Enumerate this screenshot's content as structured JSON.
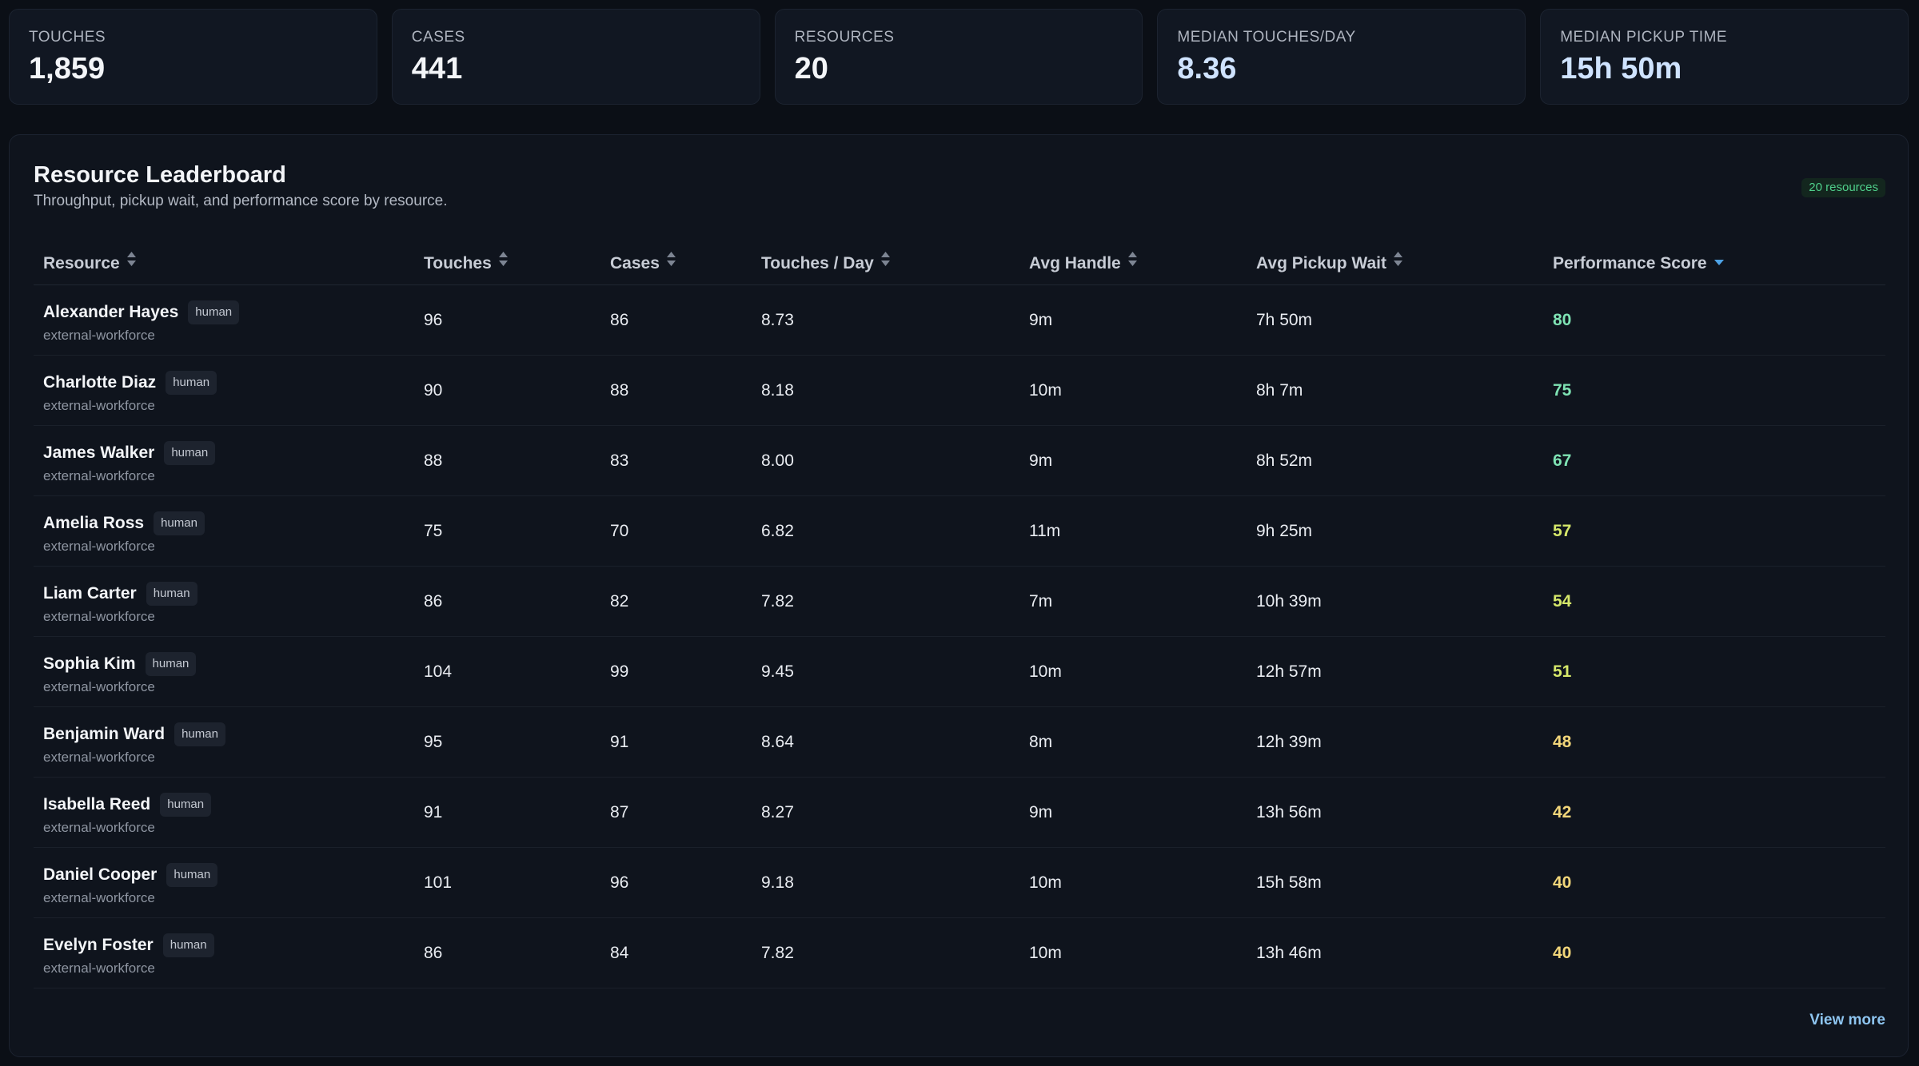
{
  "stats": [
    {
      "label": "TOUCHES",
      "value": "1,859"
    },
    {
      "label": "CASES",
      "value": "441"
    },
    {
      "label": "RESOURCES",
      "value": "20"
    },
    {
      "label": "MEDIAN TOUCHES/DAY",
      "value": "8.36"
    },
    {
      "label": "MEDIAN PICKUP TIME",
      "value": "15h 50m"
    }
  ],
  "leaderboard": {
    "title": "Resource Leaderboard",
    "subtitle": "Throughput, pickup wait, and performance score by resource.",
    "count_badge": "20 resources",
    "columns": [
      "Resource",
      "Touches",
      "Cases",
      "Touches / Day",
      "Avg Handle",
      "Avg Pickup Wait",
      "Performance Score"
    ],
    "sorted_column": "Performance Score",
    "sort_direction": "descending",
    "rows": [
      {
        "name": "Alexander Hayes",
        "tag": "human",
        "org": "external-workforce",
        "touches": "96",
        "cases": "86",
        "tpd": "8.73",
        "handle": "9m",
        "wait": "7h 50m",
        "score": "80"
      },
      {
        "name": "Charlotte Diaz",
        "tag": "human",
        "org": "external-workforce",
        "touches": "90",
        "cases": "88",
        "tpd": "8.18",
        "handle": "10m",
        "wait": "8h 7m",
        "score": "75"
      },
      {
        "name": "James Walker",
        "tag": "human",
        "org": "external-workforce",
        "touches": "88",
        "cases": "83",
        "tpd": "8.00",
        "handle": "9m",
        "wait": "8h 52m",
        "score": "67"
      },
      {
        "name": "Amelia Ross",
        "tag": "human",
        "org": "external-workforce",
        "touches": "75",
        "cases": "70",
        "tpd": "6.82",
        "handle": "11m",
        "wait": "9h 25m",
        "score": "57"
      },
      {
        "name": "Liam Carter",
        "tag": "human",
        "org": "external-workforce",
        "touches": "86",
        "cases": "82",
        "tpd": "7.82",
        "handle": "7m",
        "wait": "10h 39m",
        "score": "54"
      },
      {
        "name": "Sophia Kim",
        "tag": "human",
        "org": "external-workforce",
        "touches": "104",
        "cases": "99",
        "tpd": "9.45",
        "handle": "10m",
        "wait": "12h 57m",
        "score": "51"
      },
      {
        "name": "Benjamin Ward",
        "tag": "human",
        "org": "external-workforce",
        "touches": "95",
        "cases": "91",
        "tpd": "8.64",
        "handle": "8m",
        "wait": "12h 39m",
        "score": "48"
      },
      {
        "name": "Isabella Reed",
        "tag": "human",
        "org": "external-workforce",
        "touches": "91",
        "cases": "87",
        "tpd": "8.27",
        "handle": "9m",
        "wait": "13h 56m",
        "score": "42"
      },
      {
        "name": "Daniel Cooper",
        "tag": "human",
        "org": "external-workforce",
        "touches": "101",
        "cases": "96",
        "tpd": "9.18",
        "handle": "10m",
        "wait": "15h 58m",
        "score": "40"
      },
      {
        "name": "Evelyn Foster",
        "tag": "human",
        "org": "external-workforce",
        "touches": "86",
        "cases": "84",
        "tpd": "7.82",
        "handle": "10m",
        "wait": "13h 46m",
        "score": "40"
      }
    ],
    "view_more": "View more"
  },
  "colors": {
    "score_high": "#7fe3b4",
    "score_mid": "#d6e86a",
    "score_low": "#f2d67a",
    "sort_active": "#4ea3e6",
    "sort_inactive": "#7d8593"
  }
}
